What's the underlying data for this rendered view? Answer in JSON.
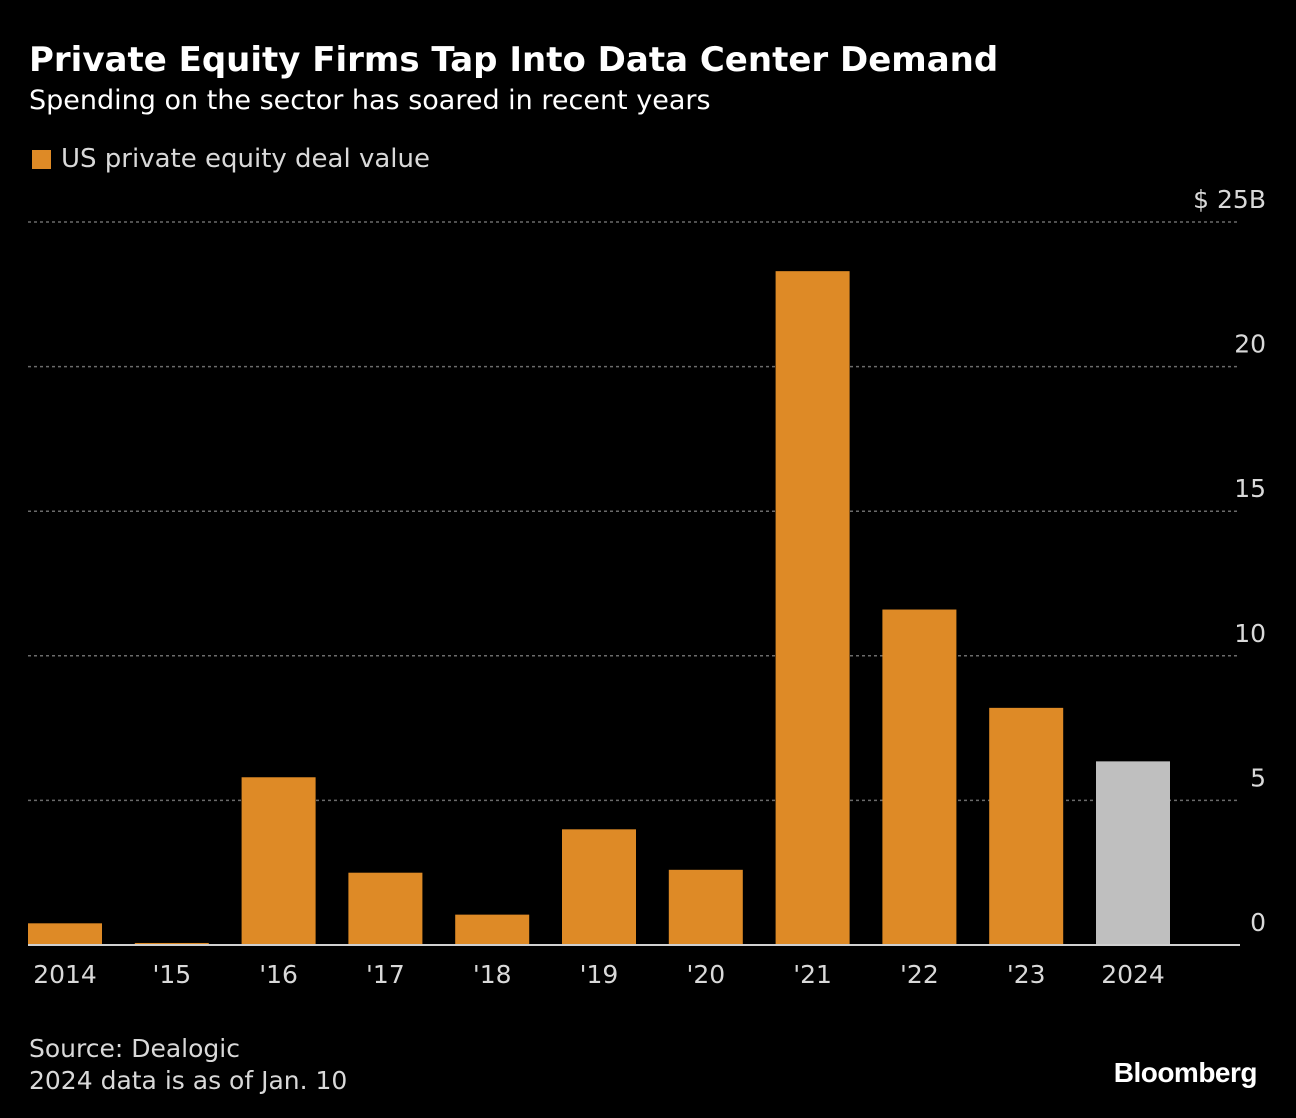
{
  "header": {
    "title": "Private Equity Firms Tap Into Data Center Demand",
    "subtitle": "Spending on the sector has soared in recent years"
  },
  "colors": {
    "background": "#000000",
    "bar_primary": "#de8a26",
    "bar_partial": "#bfbfbf",
    "grid": "#6b6b6b",
    "axis": "#d0d0d0",
    "label": "#d9d9d9"
  },
  "chart_data": {
    "type": "bar",
    "title": "Private Equity Firms Tap Into Data Center Demand",
    "subtitle": "Spending on the sector has soared in recent years",
    "xlabel": "",
    "ylabel": "",
    "categories": [
      "2014",
      "'15",
      "'16",
      "'17",
      "'18",
      "'19",
      "'20",
      "'21",
      "'22",
      "'23",
      "2024"
    ],
    "series": [
      {
        "name": "US private equity deal value",
        "unit": "$B",
        "values": [
          0.75,
          0.07,
          5.8,
          2.5,
          1.05,
          4.0,
          2.6,
          23.3,
          11.6,
          8.2,
          6.35
        ]
      }
    ],
    "partial_categories": [
      "2024"
    ],
    "ylim": [
      0,
      25
    ],
    "yticks": [
      0,
      5,
      10,
      15,
      20,
      25
    ],
    "ytick_labels": [
      "0",
      "5",
      "10",
      "15",
      "20",
      "$ 25B"
    ],
    "grid": true,
    "legend_position": "top-left"
  },
  "footer": {
    "source": "Source: Dealogic",
    "note": "2024 data is as of Jan. 10",
    "brand": "Bloomberg"
  }
}
